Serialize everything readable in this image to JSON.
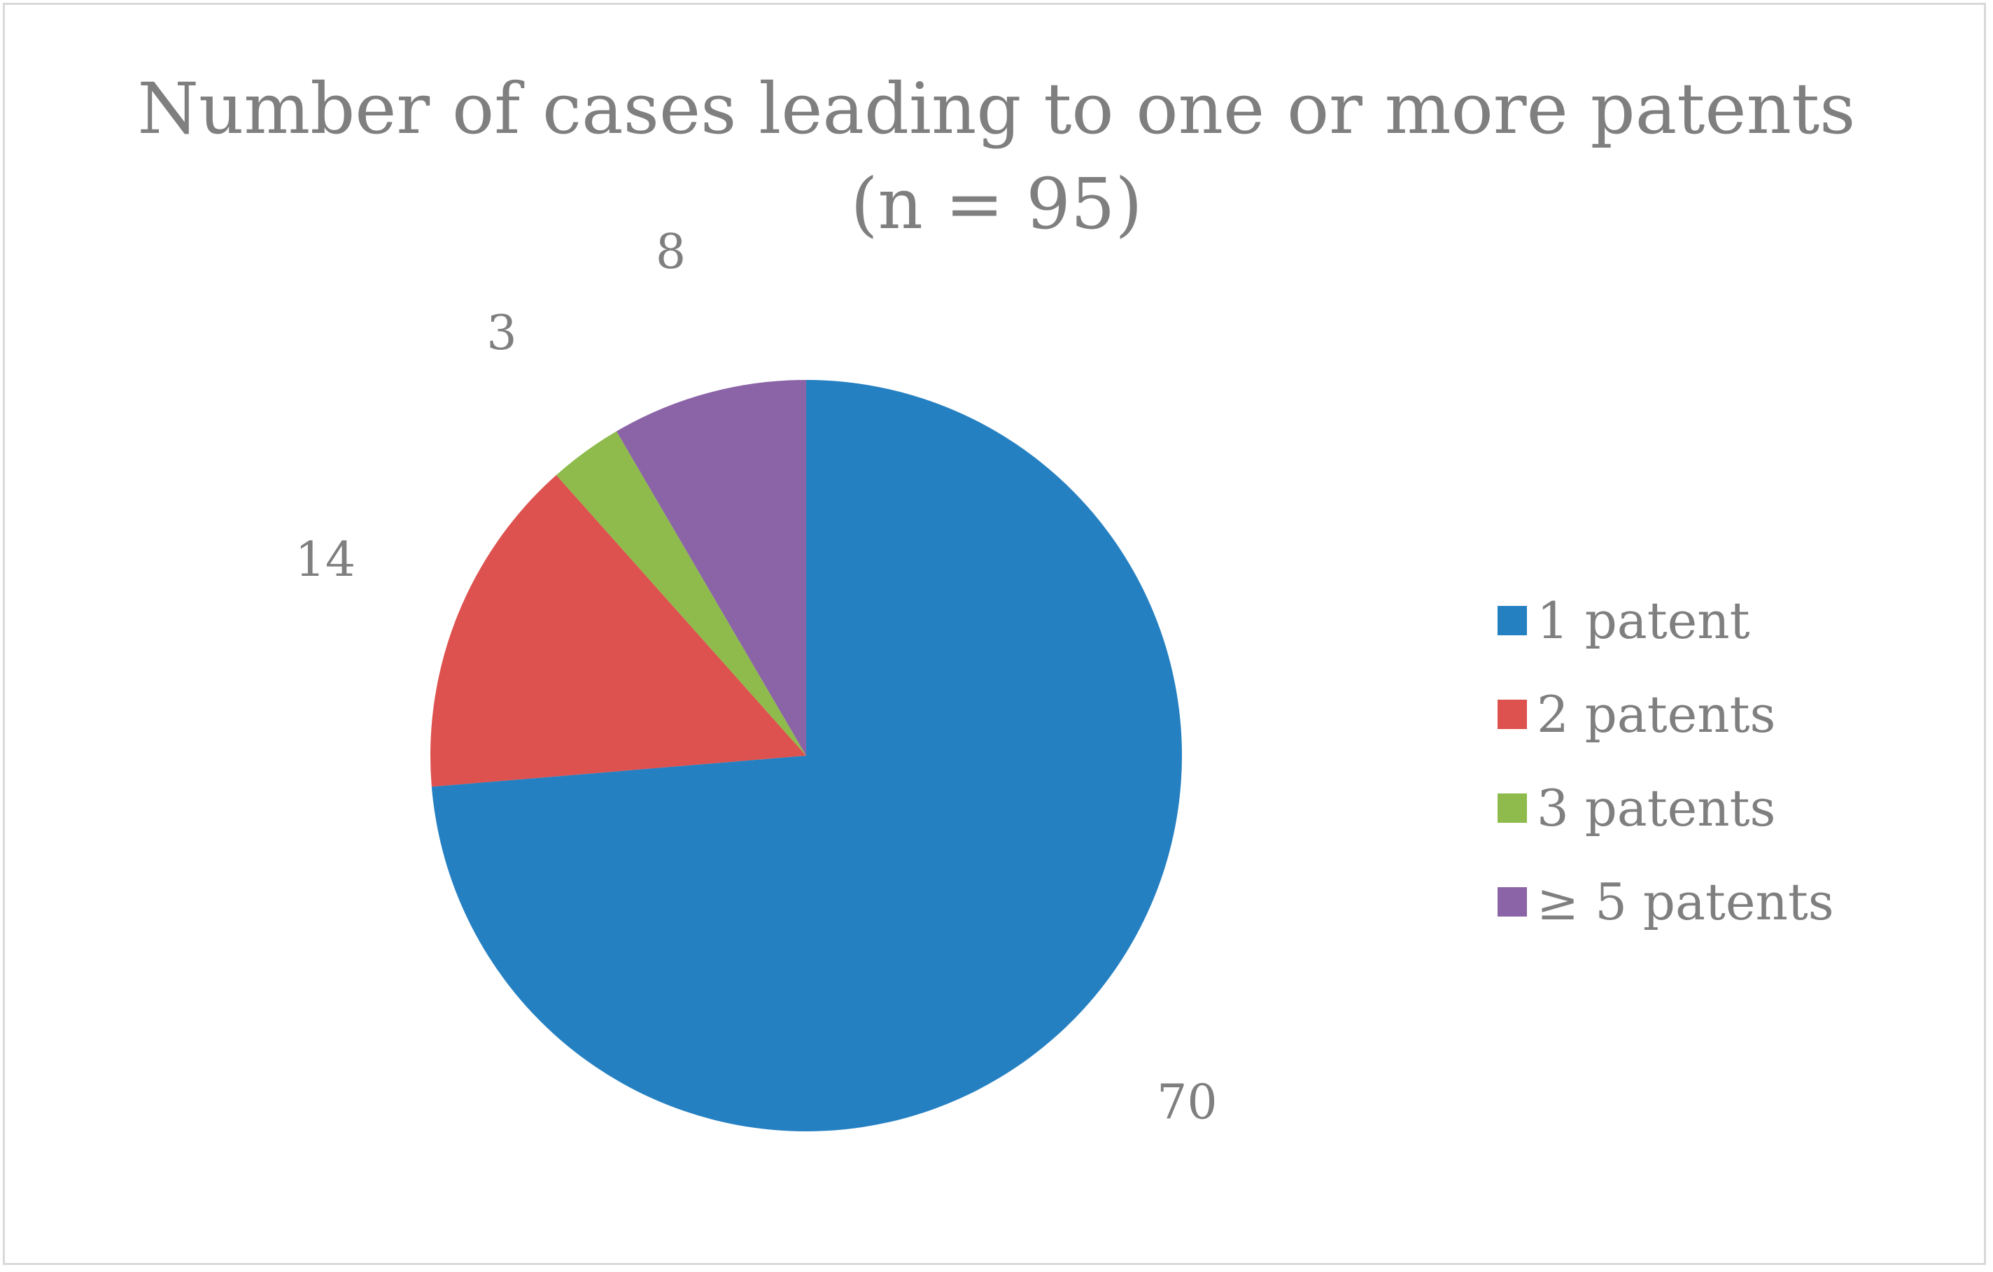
{
  "chart_data": {
    "type": "pie",
    "title": "Number of cases leading to one or more patents",
    "subtitle": "(n = 95)",
    "slices": [
      {
        "label": "1 patent",
        "value": 70,
        "color": "#2580c2"
      },
      {
        "label": "2 patents",
        "value": 14,
        "color": "#dd514e"
      },
      {
        "label": "3 patents",
        "value": 3,
        "color": "#8ebb4c"
      },
      {
        "label": "≥ 5 patents",
        "value": 8,
        "color": "#8b64a7"
      }
    ],
    "legend_position": "right",
    "start": "12 o'clock",
    "direction": "clockwise",
    "data_labels": true,
    "text_color": "#7f7f7f",
    "border_color": "#d9d9d9"
  }
}
